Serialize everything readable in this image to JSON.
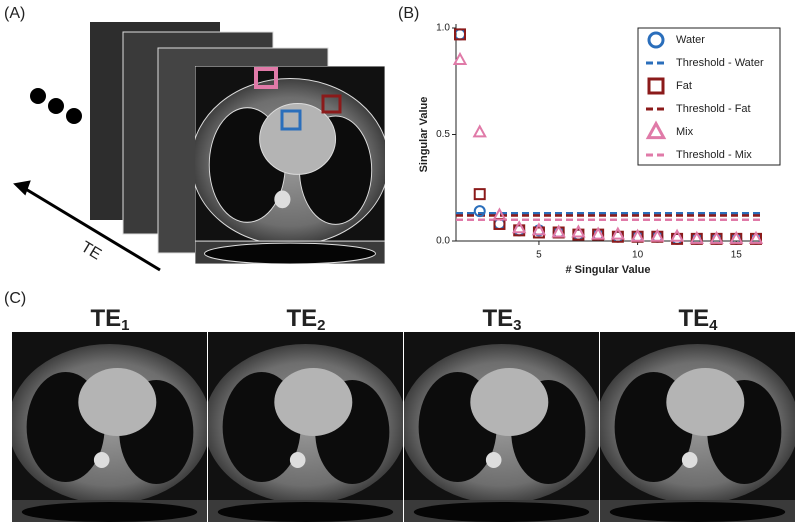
{
  "panel_labels": [
    "(A)",
    "(B)",
    "(C)"
  ],
  "arrow_label": "TE",
  "te_images": [
    {
      "base": "TE",
      "sub": "1"
    },
    {
      "base": "TE",
      "sub": "2"
    },
    {
      "base": "TE",
      "sub": "3"
    },
    {
      "base": "TE",
      "sub": "4"
    }
  ],
  "chart_data": {
    "type": "scatter",
    "y_label": "Singular Value",
    "x_label": "# Singular Value",
    "x": [
      1,
      2,
      3,
      4,
      5,
      6,
      7,
      8,
      9,
      10,
      11,
      12,
      13,
      14,
      15,
      16
    ],
    "xlim": [
      1,
      16
    ],
    "xticks": [
      5,
      10,
      15
    ],
    "ylim": [
      0,
      1
    ],
    "yticks": [
      {
        "value": 0,
        "label": "0.0"
      },
      {
        "value": 0.5,
        "label": "0.5"
      },
      {
        "value": 1,
        "label": "1.0"
      }
    ],
    "series": [
      {
        "name": "Water",
        "color": "#2a6ebb",
        "marker": "circle",
        "values": [
          0.97,
          0.14,
          0.08,
          0.05,
          0.05,
          0.04,
          0.03,
          0.03,
          0.02,
          0.02,
          0.02,
          0.01,
          0.01,
          0.01,
          0.01,
          0.01
        ]
      },
      {
        "name": "Fat",
        "color": "#8b1a1a",
        "marker": "square",
        "values": [
          0.97,
          0.22,
          0.08,
          0.05,
          0.04,
          0.04,
          0.03,
          0.03,
          0.02,
          0.02,
          0.02,
          0.01,
          0.01,
          0.01,
          0.01,
          0.01
        ]
      },
      {
        "name": "Mix",
        "color": "#e07aa8",
        "marker": "triangle",
        "values": [
          0.85,
          0.51,
          0.12,
          0.06,
          0.05,
          0.04,
          0.04,
          0.03,
          0.03,
          0.02,
          0.02,
          0.02,
          0.01,
          0.01,
          0.01,
          0.01
        ]
      }
    ],
    "thresholds": [
      {
        "name": "Threshold - Water",
        "color": "#2a6ebb",
        "value": 0.13
      },
      {
        "name": "Threshold - Fat",
        "color": "#8b1a1a",
        "value": 0.12
      },
      {
        "name": "Threshold - Mix",
        "color": "#e07aa8",
        "value": 0.1
      }
    ]
  }
}
